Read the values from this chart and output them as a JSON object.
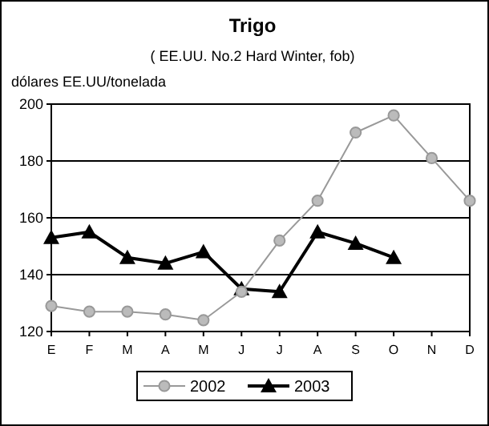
{
  "chart_data": {
    "type": "line",
    "title": "Trigo",
    "subtitle": "( EE.UU. No.2 Hard Winter, fob)",
    "ylabel": "dólares EE.UU/tonelada",
    "categories": [
      "E",
      "F",
      "M",
      "A",
      "M",
      "J",
      "J",
      "A",
      "S",
      "O",
      "N",
      "D"
    ],
    "series": [
      {
        "name": "2002",
        "color": "#999999",
        "marker": "circle",
        "values": [
          129,
          127,
          127,
          126,
          124,
          134,
          152,
          166,
          190,
          196,
          181,
          166
        ]
      },
      {
        "name": "2003",
        "color": "#000000",
        "marker": "triangle",
        "values": [
          153,
          155,
          146,
          144,
          148,
          135,
          134,
          155,
          151,
          146,
          null,
          null
        ]
      }
    ],
    "ylim": [
      120,
      200
    ],
    "yticks": [
      120,
      140,
      160,
      180,
      200
    ],
    "grid": "y",
    "legend": "bottom"
  }
}
